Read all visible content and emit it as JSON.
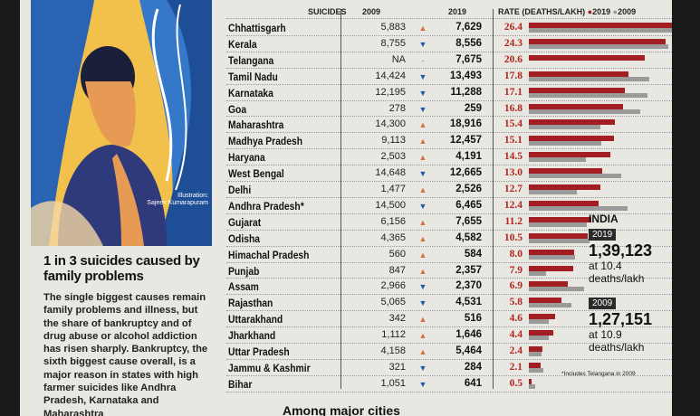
{
  "headers": {
    "suicides": "SUICIDES",
    "y2009": "2009",
    "y2019": "2019",
    "rate": "RATE (DEATHS/LAKH)",
    "legend_2019": "2019",
    "legend_2009": "2009"
  },
  "colors": {
    "bar_2019": "#a31e22",
    "bar_2009": "#9a9a9a",
    "arrow_up": "#d1733a",
    "arrow_down": "#1c5aa8"
  },
  "rows": [
    {
      "state": "Chhattisgarh",
      "v2009": "5,883",
      "trend": "up",
      "v2019": "7,629",
      "rate": "26.4",
      "r19": 26.4,
      "r09": 26.5
    },
    {
      "state": "Kerala",
      "v2009": "8,755",
      "trend": "down",
      "v2019": "8,556",
      "rate": "24.3",
      "r19": 24.3,
      "r09": 24.9
    },
    {
      "state": "Telangana",
      "v2009": "NA",
      "trend": "flat",
      "v2019": "7,675",
      "rate": "20.6",
      "r19": 20.6,
      "r09": 0
    },
    {
      "state": "Tamil Nadu",
      "v2009": "14,424",
      "trend": "down",
      "v2019": "13,493",
      "rate": "17.8",
      "r19": 17.8,
      "r09": 21.5
    },
    {
      "state": "Karnataka",
      "v2009": "12,195",
      "trend": "down",
      "v2019": "11,288",
      "rate": "17.1",
      "r19": 17.1,
      "r09": 21.2
    },
    {
      "state": "Goa",
      "v2009": "278",
      "trend": "down",
      "v2019": "259",
      "rate": "16.8",
      "r19": 16.8,
      "r09": 19.8
    },
    {
      "state": "Maharashtra",
      "v2009": "14,300",
      "trend": "up",
      "v2019": "18,916",
      "rate": "15.4",
      "r19": 15.4,
      "r09": 12.8
    },
    {
      "state": "Madhya Pradesh",
      "v2009": "9,113",
      "trend": "up",
      "v2019": "12,457",
      "rate": "15.1",
      "r19": 15.1,
      "r09": 12.9
    },
    {
      "state": "Haryana",
      "v2009": "2,503",
      "trend": "up",
      "v2019": "4,191",
      "rate": "14.5",
      "r19": 14.5,
      "r09": 10.2
    },
    {
      "state": "West Bengal",
      "v2009": "14,648",
      "trend": "down",
      "v2019": "12,665",
      "rate": "13.0",
      "r19": 13.0,
      "r09": 16.5
    },
    {
      "state": "Delhi",
      "v2009": "1,477",
      "trend": "up",
      "v2019": "2,526",
      "rate": "12.7",
      "r19": 12.7,
      "r09": 8.5
    },
    {
      "state": "Andhra Pradesh*",
      "v2009": "14,500",
      "trend": "down",
      "v2019": "6,465",
      "rate": "12.4",
      "r19": 12.4,
      "r09": 17.5
    },
    {
      "state": "Gujarat",
      "v2009": "6,156",
      "trend": "up",
      "v2019": "7,655",
      "rate": "11.2",
      "r19": 11.2,
      "r09": 10.3
    },
    {
      "state": "Odisha",
      "v2009": "4,365",
      "trend": "up",
      "v2019": "4,582",
      "rate": "10.5",
      "r19": 10.5,
      "r09": 10.8
    },
    {
      "state": "Himachal Pradesh",
      "v2009": "560",
      "trend": "up",
      "v2019": "584",
      "rate": "8.0",
      "r19": 8.0,
      "r09": 8.3
    },
    {
      "state": "Punjab",
      "v2009": "847",
      "trend": "up",
      "v2019": "2,357",
      "rate": "7.9",
      "r19": 7.9,
      "r09": 3.1
    },
    {
      "state": "Assam",
      "v2009": "2,966",
      "trend": "down",
      "v2019": "2,370",
      "rate": "6.9",
      "r19": 6.9,
      "r09": 9.9
    },
    {
      "state": "Rajasthan",
      "v2009": "5,065",
      "trend": "down",
      "v2019": "4,531",
      "rate": "5.8",
      "r19": 5.8,
      "r09": 7.5
    },
    {
      "state": "Uttarakhand",
      "v2009": "342",
      "trend": "up",
      "v2019": "516",
      "rate": "4.6",
      "r19": 4.6,
      "r09": 3.6
    },
    {
      "state": "Jharkhand",
      "v2009": "1,112",
      "trend": "up",
      "v2019": "1,646",
      "rate": "4.4",
      "r19": 4.4,
      "r09": 3.6
    },
    {
      "state": "Uttar Pradesh",
      "v2009": "4,158",
      "trend": "up",
      "v2019": "5,464",
      "rate": "2.4",
      "r19": 2.4,
      "r09": 2.2
    },
    {
      "state": "Jammu & Kashmir",
      "v2009": "321",
      "trend": "down",
      "v2019": "284",
      "rate": "2.1",
      "r19": 2.1,
      "r09": 2.6
    },
    {
      "state": "Bihar",
      "v2009": "1,051",
      "trend": "down",
      "v2019": "641",
      "rate": "0.5",
      "r19": 0.5,
      "r09": 1.1
    }
  ],
  "india": {
    "label": "INDIA",
    "y2019": "2019",
    "total2019": "1,39,123",
    "rate2019_a": "at 10.4",
    "rate2019_b": "deaths/lakh",
    "y2009": "2009",
    "total2009": "1,27,151",
    "rate2009_a": "at 10.9",
    "rate2009_b": "deaths/lakh"
  },
  "footnote": "*Includes Telangana in 2009",
  "illustration": {
    "credit_a": "Illustration:",
    "credit_b": "Sajeev Kumarapuram"
  },
  "article": {
    "headline": "1 in 3 suicides caused by family problems",
    "body": "The single biggest causes remain family problems and illness, but the share of bankruptcy and of drug abuse or alcohol addiction has risen sharply. Bankruptcy, the sixth biggest cause overall, is a major reason in states with high farmer suicides like Andhra Pradesh, Karnataka and Maharashtra"
  },
  "bottom_heading": "Among major cities"
}
